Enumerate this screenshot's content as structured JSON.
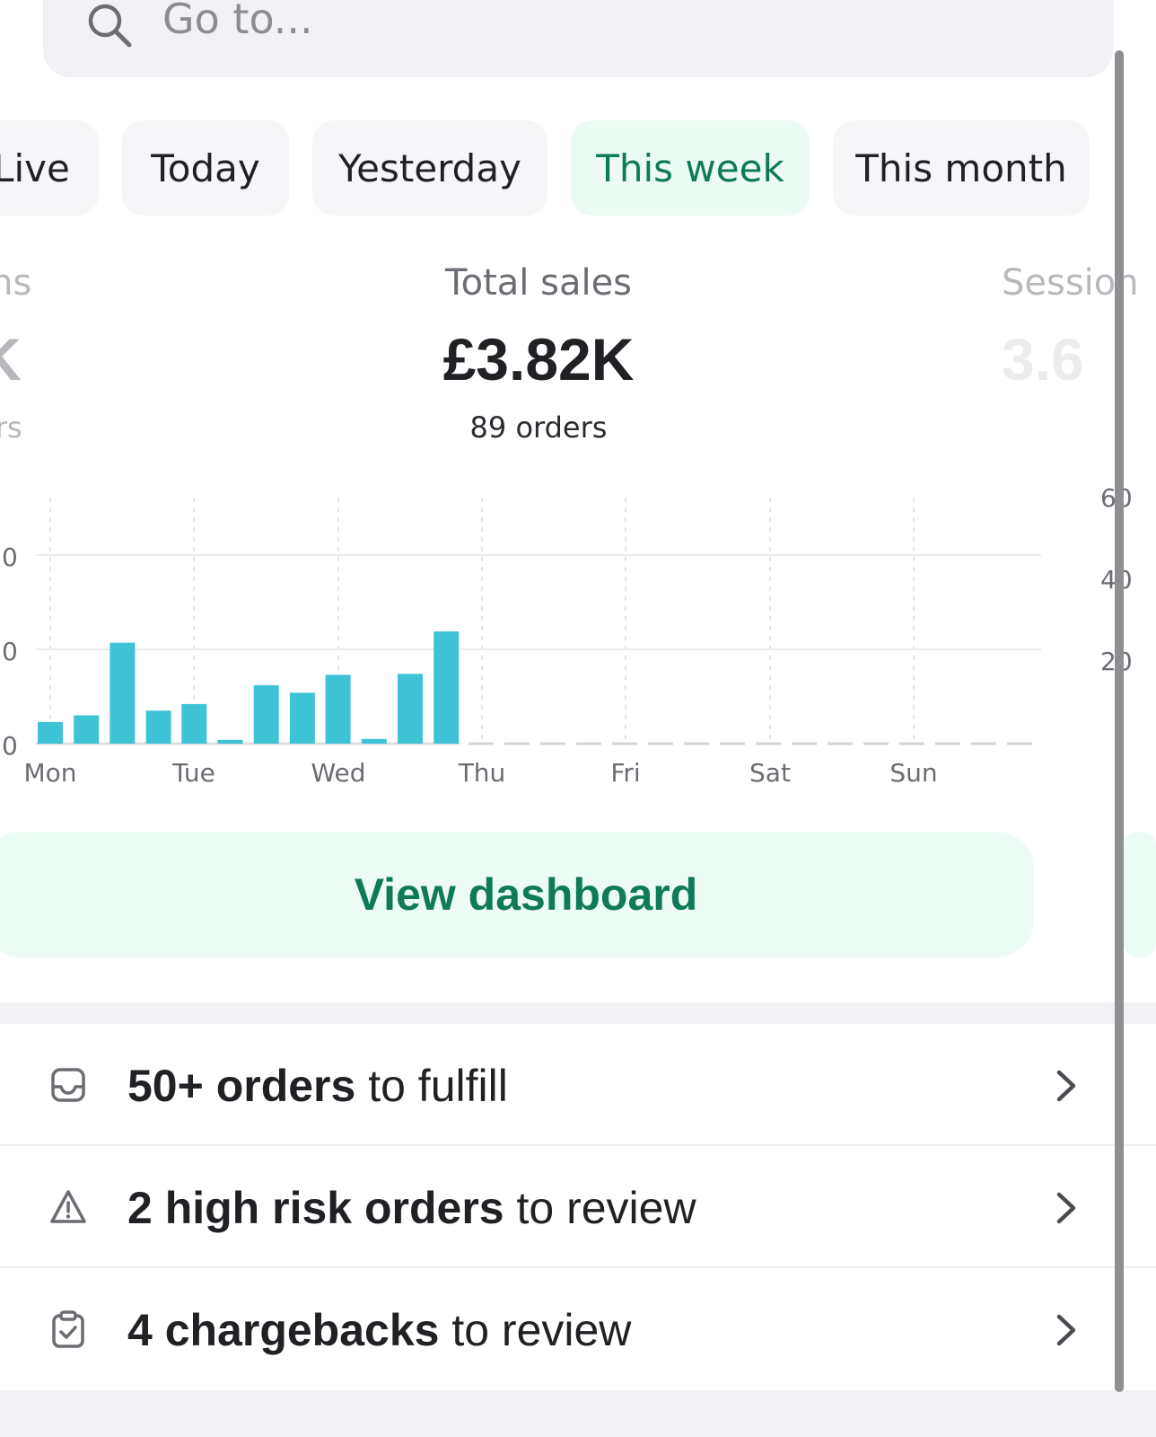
{
  "search": {
    "placeholder": "Go to..."
  },
  "tabs": [
    {
      "label": "Live",
      "active": false
    },
    {
      "label": "Today",
      "active": false
    },
    {
      "label": "Yesterday",
      "active": false
    },
    {
      "label": "This week",
      "active": true
    },
    {
      "label": "This month",
      "active": false
    }
  ],
  "metrics": {
    "left": {
      "label": "ons",
      "value": "K",
      "sub": "ors"
    },
    "center": {
      "label": "Total sales",
      "value": "£3.82K",
      "sub": "89 orders"
    },
    "right": {
      "label": "Session",
      "value": "3.6"
    }
  },
  "chart_data": {
    "type": "bar",
    "categories": [
      "Mon",
      "Tue",
      "Wed",
      "Thu",
      "Fri",
      "Sat",
      "Sun"
    ],
    "left_ticks": [
      "0",
      "0",
      "0"
    ],
    "right_ticks": [
      "60",
      "40",
      "20"
    ],
    "bars": [
      {
        "day": "Mon",
        "values": [
          2.3,
          3.0,
          10.7,
          3.5
        ]
      },
      {
        "day": "Tue",
        "values": [
          4.2,
          0.4,
          6.2,
          5.4
        ]
      },
      {
        "day": "Wed",
        "values": [
          7.3,
          0.5,
          7.4,
          11.9
        ]
      },
      {
        "day": "Thu",
        "values": [
          0,
          0,
          0,
          0
        ]
      },
      {
        "day": "Fri",
        "values": [
          0,
          0,
          0,
          0
        ]
      },
      {
        "day": "Sat",
        "values": [
          0,
          0,
          0,
          0
        ]
      },
      {
        "day": "Sun",
        "values": [
          0,
          0,
          0,
          0
        ]
      }
    ],
    "bar_color": "#3ec3d6",
    "grid": true
  },
  "cta": {
    "label": "View dashboard"
  },
  "tasks": [
    {
      "icon": "inbox-icon",
      "bold": "50+ orders",
      "rest": " to fulfill"
    },
    {
      "icon": "warning-icon",
      "bold": "2 high risk orders",
      "rest": " to review"
    },
    {
      "icon": "clipboard-check-icon",
      "bold": "4 chargebacks",
      "rest": " to review"
    }
  ],
  "colors": {
    "accent": "#0f7a5a",
    "accent_bg": "#ebfaf3",
    "bar": "#3ec3d6"
  }
}
